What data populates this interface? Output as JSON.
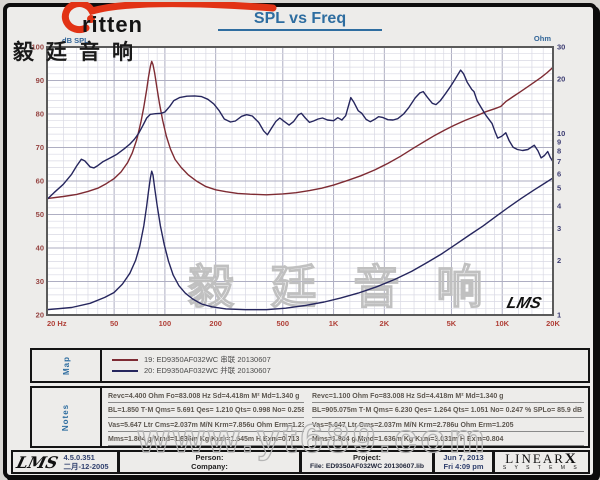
{
  "header": {
    "title": "SPL vs Freq",
    "logo_word": "ritten",
    "logo_cn": "毅廷音响"
  },
  "chart_data": {
    "type": "line",
    "title": "SPL vs Freq",
    "grid": true,
    "x_axis": {
      "scale": "log",
      "min": 20,
      "max": 20000,
      "ticks": [
        20,
        50,
        100,
        200,
        500,
        1000,
        2000,
        5000,
        10000,
        20000
      ],
      "tick_labels": [
        "20 Hz",
        "50",
        "100",
        "200",
        "500",
        "1K",
        "2K",
        "5K",
        "10K",
        "20K"
      ]
    },
    "y_left": {
      "label": "dB SPL",
      "scale": "linear",
      "min": 20,
      "max": 100,
      "ticks": [
        100,
        90,
        80,
        70,
        60,
        50,
        40,
        30,
        20
      ]
    },
    "y_right": {
      "label": "Ohm",
      "scale": "log",
      "min": 1,
      "max": 30,
      "ticks": [
        30,
        20,
        10,
        9,
        8,
        7,
        6,
        5,
        4,
        3,
        2,
        1
      ]
    },
    "colors": {
      "plot_bg": "#ffffff",
      "grid_minor": "#d9d9e4",
      "grid_major": "#aeaec2",
      "plot_border": "#5a5a5a",
      "left_labels": "#954341",
      "right_labels": "#3c3c72",
      "x_labels": "#b04038",
      "axis_unit": "#336699",
      "watermark": "#c0c0c0"
    },
    "series": [
      {
        "name": "19: ED9350AF032WC 串联 20130607 — impedance (Ohm)",
        "axis": "right",
        "color": "#7e2b33",
        "points": [
          [
            20,
            4.38
          ],
          [
            25,
            4.5
          ],
          [
            30,
            4.62
          ],
          [
            35,
            4.8
          ],
          [
            40,
            5.0
          ],
          [
            45,
            5.3
          ],
          [
            50,
            5.65
          ],
          [
            55,
            6.15
          ],
          [
            60,
            6.9
          ],
          [
            64,
            7.8
          ],
          [
            68,
            9.2
          ],
          [
            72,
            11.5
          ],
          [
            75,
            14
          ],
          [
            78,
            17.5
          ],
          [
            80,
            20.5
          ],
          [
            82,
            23.5
          ],
          [
            83.5,
            25
          ],
          [
            85,
            24
          ],
          [
            87,
            21.5
          ],
          [
            90,
            17.5
          ],
          [
            93,
            14.5
          ],
          [
            97,
            11.8
          ],
          [
            102,
            9.7
          ],
          [
            108,
            8.2
          ],
          [
            115,
            7.2
          ],
          [
            125,
            6.5
          ],
          [
            138,
            5.9
          ],
          [
            155,
            5.45
          ],
          [
            175,
            5.1
          ],
          [
            200,
            4.9
          ],
          [
            230,
            4.78
          ],
          [
            270,
            4.68
          ],
          [
            320,
            4.63
          ],
          [
            400,
            4.6
          ],
          [
            500,
            4.65
          ],
          [
            600,
            4.72
          ],
          [
            720,
            4.85
          ],
          [
            850,
            5.0
          ],
          [
            1000,
            5.2
          ],
          [
            1200,
            5.5
          ],
          [
            1450,
            5.85
          ],
          [
            1750,
            6.3
          ],
          [
            2100,
            6.85
          ],
          [
            2500,
            7.5
          ],
          [
            3000,
            8.35
          ],
          [
            3500,
            9.1
          ],
          [
            4000,
            9.8
          ],
          [
            4600,
            10.5
          ],
          [
            5200,
            11.1
          ],
          [
            6000,
            11.8
          ],
          [
            7000,
            12.5
          ],
          [
            8000,
            13.2
          ],
          [
            9000,
            13.7
          ],
          [
            9800,
            14.1
          ],
          [
            10500,
            15
          ],
          [
            11500,
            15.9
          ],
          [
            12800,
            17
          ],
          [
            14000,
            18
          ],
          [
            15500,
            19.2
          ],
          [
            17000,
            20.4
          ],
          [
            18500,
            21.7
          ],
          [
            20000,
            23.2
          ]
        ]
      },
      {
        "name": "20: ED9350AF032WC 并联 20130607 — SPL (dB)",
        "axis": "left",
        "color": "#26265e",
        "points": [
          [
            20,
            54.5
          ],
          [
            22,
            56.5
          ],
          [
            25,
            59
          ],
          [
            28,
            62
          ],
          [
            30,
            64.5
          ],
          [
            32,
            66.5
          ],
          [
            33.5,
            66
          ],
          [
            36,
            64.2
          ],
          [
            38,
            63.9
          ],
          [
            40,
            64.6
          ],
          [
            43,
            65.8
          ],
          [
            47,
            66.8
          ],
          [
            52,
            68
          ],
          [
            57,
            69.5
          ],
          [
            62,
            71
          ],
          [
            66,
            72.5
          ],
          [
            70,
            74.3
          ],
          [
            74,
            76.5
          ],
          [
            78,
            78.8
          ],
          [
            82,
            79.9
          ],
          [
            88,
            80.1
          ],
          [
            95,
            80.2
          ],
          [
            100,
            80.6
          ],
          [
            107,
            82.3
          ],
          [
            113,
            84
          ],
          [
            122,
            84.9
          ],
          [
            135,
            85.3
          ],
          [
            150,
            85.4
          ],
          [
            165,
            85.2
          ],
          [
            180,
            84.4
          ],
          [
            195,
            83
          ],
          [
            210,
            81
          ],
          [
            225,
            78.5
          ],
          [
            245,
            77.6
          ],
          [
            262,
            77.9
          ],
          [
            285,
            79.3
          ],
          [
            305,
            79.8
          ],
          [
            330,
            79.4
          ],
          [
            360,
            77.5
          ],
          [
            385,
            75
          ],
          [
            405,
            73.8
          ],
          [
            425,
            75.5
          ],
          [
            455,
            77.8
          ],
          [
            480,
            78.8
          ],
          [
            510,
            77.8
          ],
          [
            545,
            76.7
          ],
          [
            580,
            77.8
          ],
          [
            620,
            79.8
          ],
          [
            645,
            80.2
          ],
          [
            680,
            78.8
          ],
          [
            720,
            77.5
          ],
          [
            760,
            77.9
          ],
          [
            810,
            78.5
          ],
          [
            860,
            78.8
          ],
          [
            920,
            78.2
          ],
          [
            1000,
            78
          ],
          [
            1060,
            78.9
          ],
          [
            1120,
            78.2
          ],
          [
            1180,
            79.5
          ],
          [
            1265,
            84.9
          ],
          [
            1320,
            83.5
          ],
          [
            1400,
            81
          ],
          [
            1470,
            80.2
          ],
          [
            1560,
            78.4
          ],
          [
            1650,
            77.7
          ],
          [
            1750,
            78.4
          ],
          [
            1850,
            79.2
          ],
          [
            1950,
            79
          ],
          [
            2100,
            78.3
          ],
          [
            2250,
            78.2
          ],
          [
            2400,
            78.6
          ],
          [
            2600,
            80
          ],
          [
            2800,
            82
          ],
          [
            3050,
            84.8
          ],
          [
            3250,
            86.3
          ],
          [
            3400,
            86.7
          ],
          [
            3600,
            85
          ],
          [
            3850,
            83.2
          ],
          [
            4050,
            82.8
          ],
          [
            4300,
            84
          ],
          [
            4600,
            86
          ],
          [
            4900,
            88
          ],
          [
            5200,
            90
          ],
          [
            5666,
            93.1
          ],
          [
            5900,
            92
          ],
          [
            6200,
            89.5
          ],
          [
            6600,
            87.3
          ],
          [
            6800,
            86.7
          ],
          [
            7100,
            84
          ],
          [
            7500,
            81.9
          ],
          [
            8000,
            79.6
          ],
          [
            8700,
            77.2
          ],
          [
            9100,
            74.5
          ],
          [
            9400,
            72.8
          ],
          [
            9900,
            73.3
          ],
          [
            10500,
            74.4
          ],
          [
            11000,
            72
          ],
          [
            11600,
            70.1
          ],
          [
            12300,
            69.4
          ],
          [
            13200,
            69.1
          ],
          [
            14200,
            69.4
          ],
          [
            15500,
            70.7
          ],
          [
            16300,
            69
          ],
          [
            17000,
            66.9
          ],
          [
            17800,
            67.6
          ],
          [
            18600,
            68.8
          ],
          [
            19300,
            67
          ],
          [
            20000,
            65.8
          ]
        ]
      },
      {
        "name": "20: ED9350AF032WC 并联 20130607 — impedance (Ohm)",
        "axis": "right",
        "color": "#26265e",
        "points": [
          [
            20,
            1.07
          ],
          [
            28,
            1.1
          ],
          [
            36,
            1.16
          ],
          [
            44,
            1.25
          ],
          [
            50,
            1.33
          ],
          [
            56,
            1.48
          ],
          [
            62,
            1.7
          ],
          [
            67,
            2.0
          ],
          [
            71,
            2.4
          ],
          [
            75,
            3.1
          ],
          [
            78,
            4.0
          ],
          [
            80,
            4.8
          ],
          [
            82,
            5.7
          ],
          [
            83.5,
            6.2
          ],
          [
            85,
            5.9
          ],
          [
            87,
            5.0
          ],
          [
            90,
            4.0
          ],
          [
            94,
            3.1
          ],
          [
            99,
            2.45
          ],
          [
            105,
            1.98
          ],
          [
            112,
            1.66
          ],
          [
            121,
            1.45
          ],
          [
            132,
            1.32
          ],
          [
            147,
            1.22
          ],
          [
            165,
            1.15
          ],
          [
            190,
            1.11
          ],
          [
            230,
            1.08
          ],
          [
            300,
            1.07
          ],
          [
            400,
            1.07
          ],
          [
            520,
            1.09
          ],
          [
            680,
            1.13
          ],
          [
            880,
            1.18
          ],
          [
            1100,
            1.24
          ],
          [
            1400,
            1.32
          ],
          [
            1800,
            1.43
          ],
          [
            2300,
            1.57
          ],
          [
            2900,
            1.74
          ],
          [
            3600,
            1.95
          ],
          [
            4400,
            2.18
          ],
          [
            5300,
            2.45
          ],
          [
            6400,
            2.76
          ],
          [
            7700,
            3.1
          ],
          [
            9200,
            3.5
          ],
          [
            11000,
            3.95
          ],
          [
            13000,
            4.4
          ],
          [
            15500,
            4.9
          ],
          [
            18000,
            5.35
          ],
          [
            20000,
            5.7
          ]
        ]
      }
    ],
    "inner_logo": "LMS"
  },
  "map": {
    "label": "Map",
    "entries": [
      {
        "color": "#7e2b33",
        "label": "19: ED9350AF032WC 串联 20130607"
      },
      {
        "color": "#26265e",
        "label": "20: ED9350AF032WC 并联 20130607"
      }
    ]
  },
  "notes": {
    "label": "Notes",
    "left": [
      "Revc=4.400 Ohm  Fo=83.008 Hz  Sd=4.418m M² Md=1.340 g",
      "BL=1.850 T·M  Qms= 5.691  Qes= 1.210  Qts= 0.998  No= 0.258 %  SPLo= 86.1 dB",
      "Vas=5.647 Ltr  Cms=2.037m M/N  Krm=7.856u Ohm  Erm=1.236",
      "Mms=1.804 g  Mmd=1.636m Kg  Kxm=1.645m H  Exm=0.713"
    ],
    "right": [
      "Revc=1.100 Ohm  Fo=83.008 Hz  Sd=4.418m M² Md=1.340 g",
      "BL=905.075m T·M  Qms= 6.230  Qes= 1.264  Qts= 1.051  No= 0.247 %  SPLo= 85.9 dB",
      "Vas=5.647 Ltr  Cms=2.037m M/N  Krm=2.786u Ohm  Erm=1.205",
      "Mms=1.804 g  Mmd=1.636m Kg  Kxm=3.031m H  Exm=0.804"
    ]
  },
  "footer": {
    "lms_script": "LMS",
    "version": "4.5.0.351",
    "version_date": "二月-12-2005",
    "person_label": "Person:",
    "company_label": "Company:",
    "project_label": "Project:",
    "file_line": "File: ED9350AF032WC  20130607.lib",
    "date": "Jun 7, 2013",
    "time": "Fri  4:09 pm",
    "brand": "LINEAR",
    "brand_x": "X",
    "brand_sub": "S Y S T E M S"
  },
  "watermarks": {
    "plot": "毅 廷 音 响",
    "notes": "www.yt689.com"
  }
}
